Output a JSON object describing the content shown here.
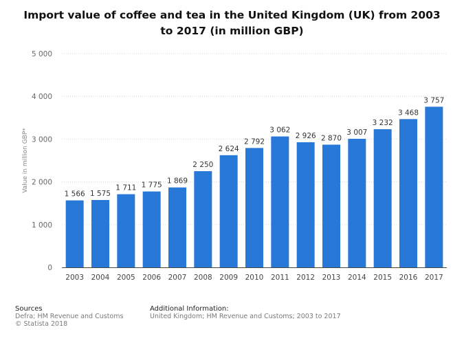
{
  "title_line1": "Import value of coffee and tea in the United Kingdom (UK) from 2003",
  "title_line2": "to 2017 (in million GBP)",
  "chart_data": {
    "type": "bar",
    "title": "Import value of coffee and tea in the United Kingdom (UK) from 2003 to 2017 (in million GBP)",
    "categories": [
      "2003",
      "2004",
      "2005",
      "2006",
      "2007",
      "2008",
      "2009",
      "2010",
      "2011",
      "2012",
      "2013",
      "2014",
      "2015",
      "2016",
      "2017"
    ],
    "values": [
      1566,
      1575,
      1711,
      1775,
      1869,
      2250,
      2624,
      2792,
      3062,
      2926,
      2870,
      3007,
      3232,
      3468,
      3757
    ],
    "value_labels": [
      "1 566",
      "1 575",
      "1 711",
      "1 775",
      "1 869",
      "2 250",
      "2 624",
      "2 792",
      "3 062",
      "2 926",
      "2 870",
      "3 007",
      "3 232",
      "3 468",
      "3 757"
    ],
    "yticks": [
      0,
      1000,
      2000,
      3000,
      4000,
      5000
    ],
    "ytick_labels": [
      "0",
      "1 000",
      "2 000",
      "3 000",
      "4 000",
      "5 000"
    ],
    "ylim": [
      0,
      5000
    ],
    "xlabel": "",
    "ylabel": "Value in million GBP*",
    "grid": true,
    "bar_color": "#2878d8"
  },
  "footer": {
    "sources_heading": "Sources",
    "sources_line1": "Defra; HM Revenue and Customs",
    "sources_line2": "© Statista 2018",
    "info_heading": "Additional Information:",
    "info_line1": "United Kingdom; HM Revenue and Customs; 2003 to 2017"
  }
}
